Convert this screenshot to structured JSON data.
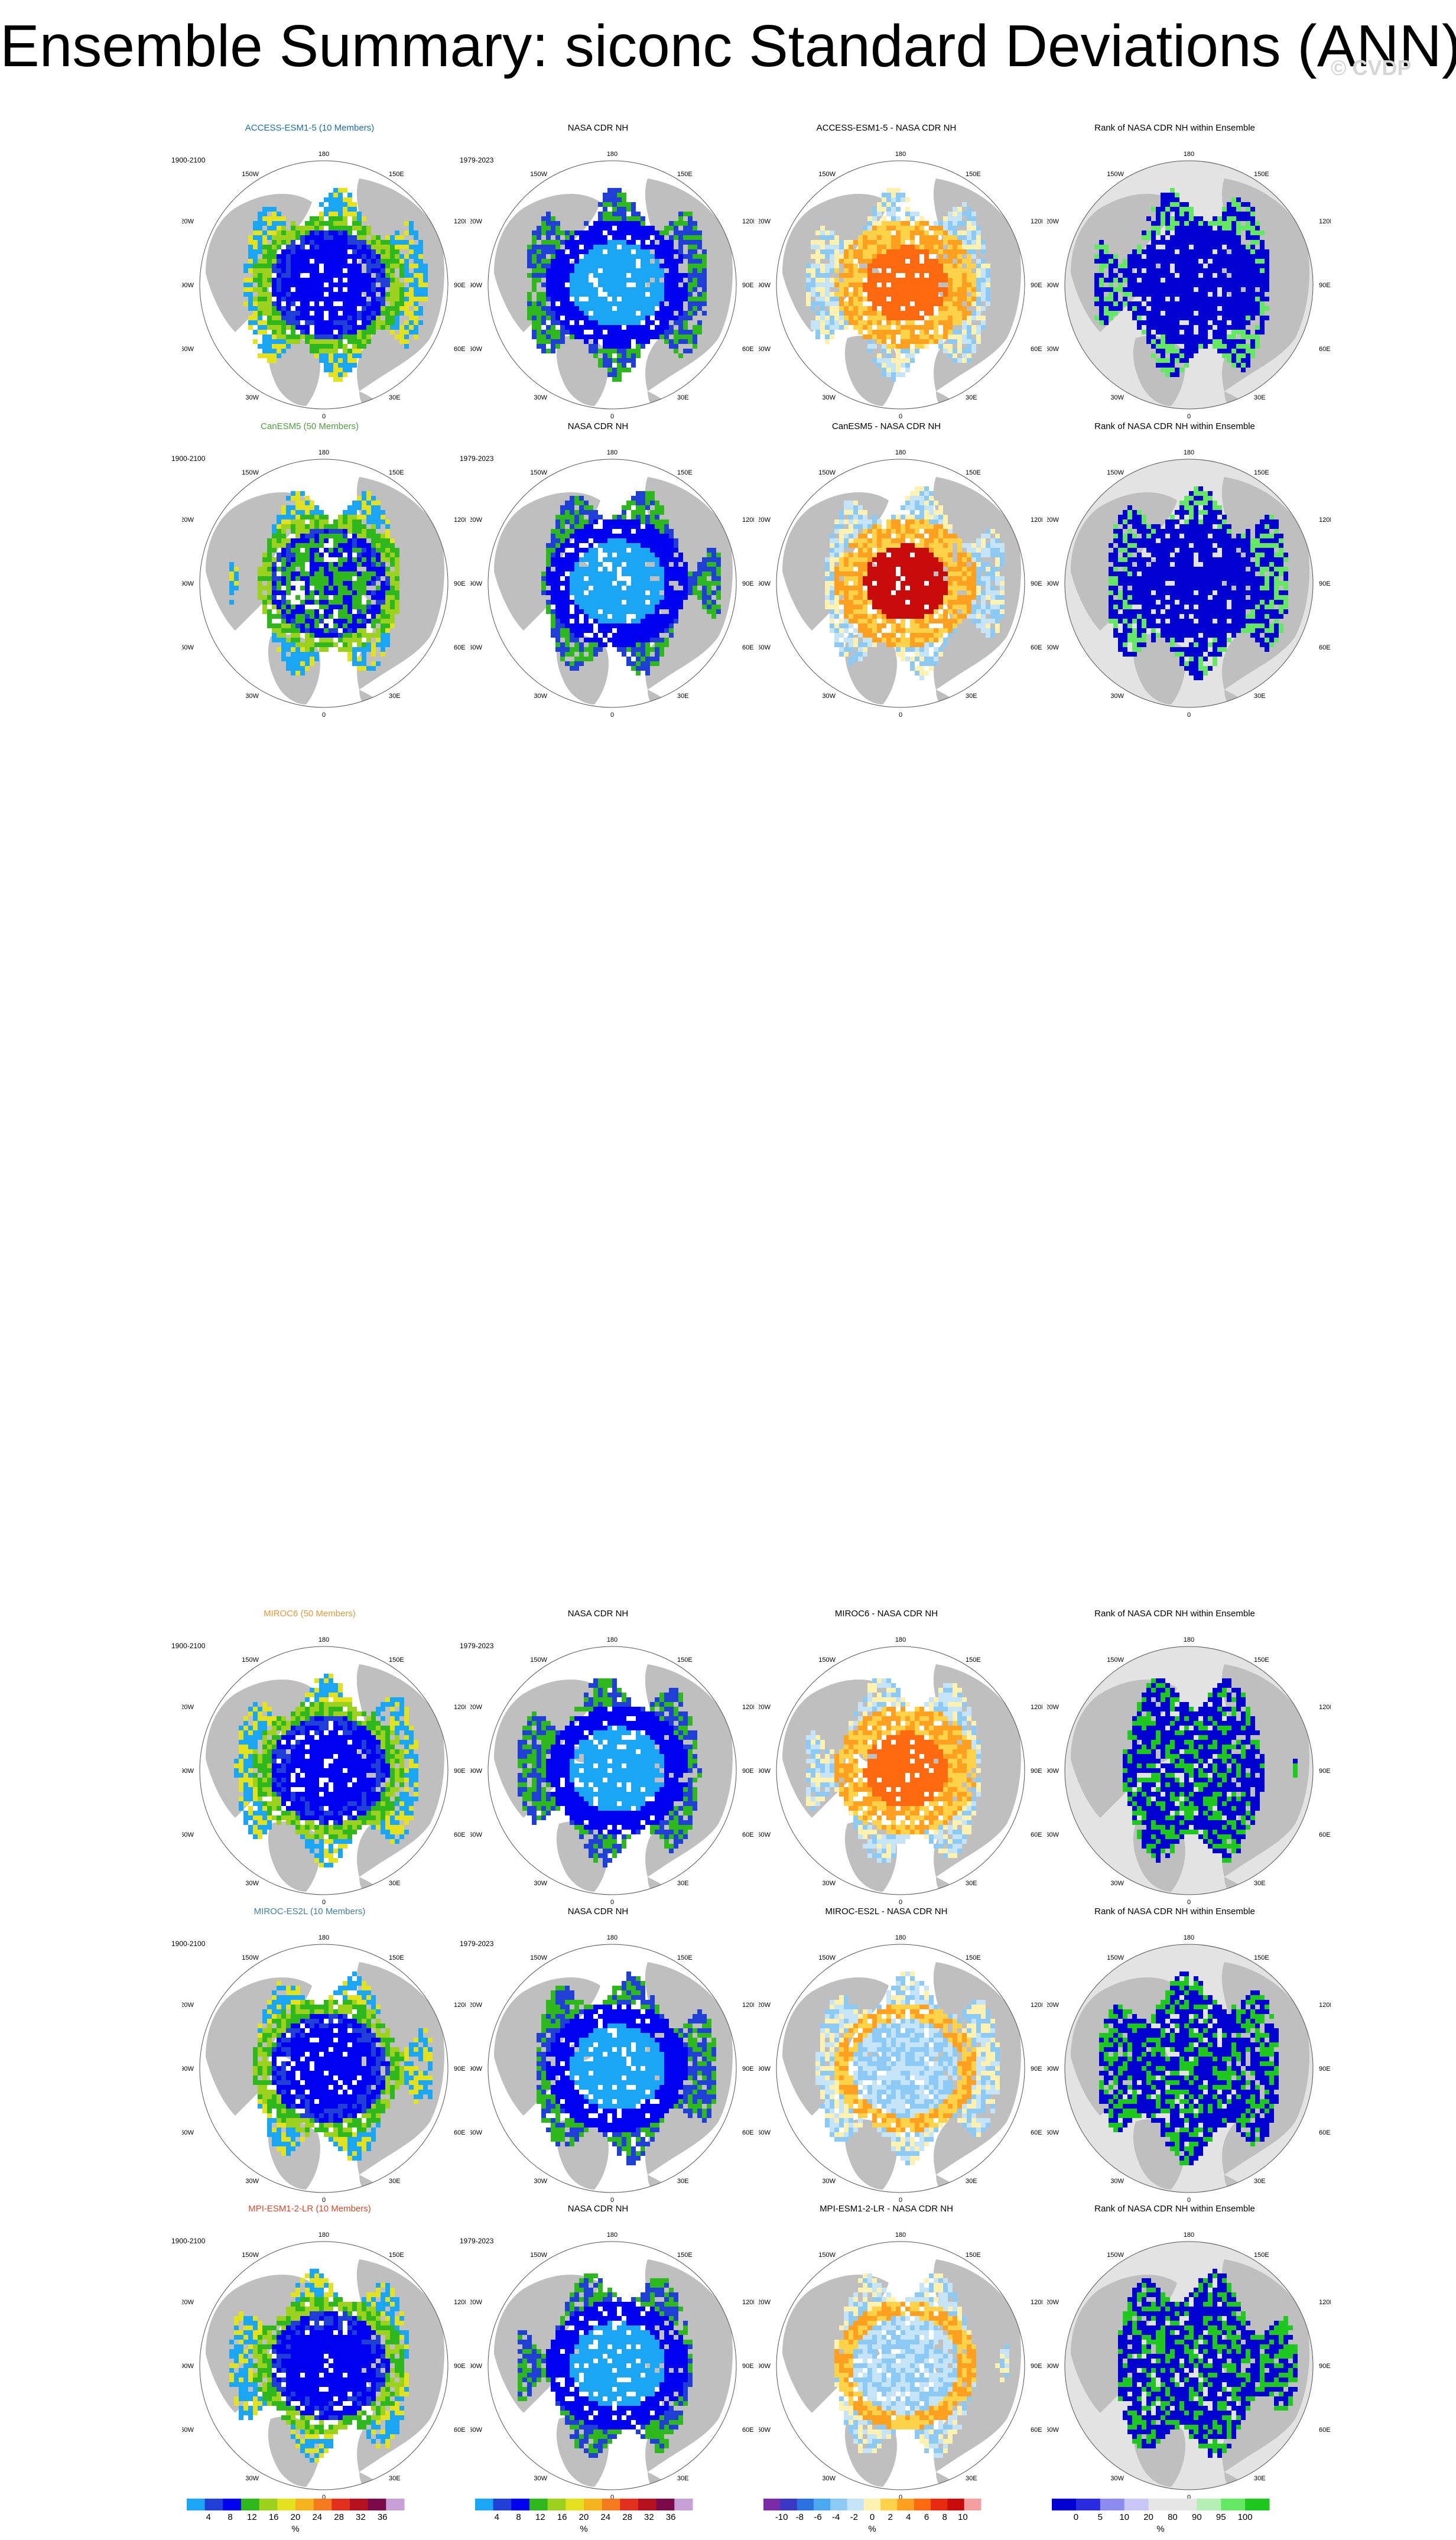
{
  "page": {
    "title": "Ensemble Summary: siconc Standard Deviations (ANN)",
    "watermark": "© CVDP"
  },
  "lon_labels": {
    "top": "180",
    "bottom": "0",
    "upper_left": "150W",
    "upper_right": "150E",
    "left_upper": "120W",
    "right_upper": "120E",
    "left_mid": "90W",
    "right_mid": "90E",
    "left_lower": "60W",
    "right_lower": "60E",
    "lower_left": "30W",
    "lower_right": "30E"
  },
  "colors": {
    "land": "#bfbfbf",
    "ocean": "#ffffff",
    "rank_background": "#e3e3e3",
    "sd_palette": [
      "#1aa5f5",
      "#1f3fd6",
      "#0000f0",
      "#2fb81e",
      "#9cd21e",
      "#e4e21e",
      "#f5b31e",
      "#f57a1e",
      "#e3301e",
      "#b4101e",
      "#7a0a4a",
      "#c8a0d8"
    ],
    "diff_palette": [
      "#7a2ca8",
      "#3a38c4",
      "#2a70e0",
      "#4aa8f0",
      "#8ccaf5",
      "#c6e4f8",
      "#fff2b0",
      "#ffd24a",
      "#ffa020",
      "#ff6a10",
      "#e82a10",
      "#c80a0a",
      "#f5a0a0"
    ],
    "rank_palette": [
      "#0000d0",
      "#2a2ae0",
      "#8c8cf0",
      "#c8c8f8",
      "#e6e6e6",
      "#e6e6e6",
      "#b4f0b4",
      "#64e864",
      "#1ec81e"
    ]
  },
  "rows": [
    {
      "model": "ACCESS-ESM1-5 (10 Members)",
      "model_color": "#1a6fa6",
      "period": "1900-2100",
      "obs_title": "NASA CDR NH",
      "obs_period": "1979-2023",
      "diff_title": "ACCESS-ESM1-5 - NASA CDR NH",
      "rank_title": "Rank of NASA CDR NH within Ensemble"
    },
    {
      "model": "CanESM5 (50 Members)",
      "model_color": "#4f9e3f",
      "period": "1900-2100",
      "obs_title": "NASA CDR NH",
      "obs_period": "1979-2023",
      "diff_title": "CanESM5 - NASA CDR NH",
      "rank_title": "Rank of NASA CDR NH within Ensemble"
    },
    {
      "model": "MIROC6 (50 Members)",
      "model_color": "#e39a3a",
      "period": "1900-2100",
      "obs_title": "NASA CDR NH",
      "obs_period": "1979-2023",
      "diff_title": "MIROC6 - NASA CDR NH",
      "rank_title": "Rank of NASA CDR NH within Ensemble"
    },
    {
      "model": "MIROC-ES2L (10 Members)",
      "model_color": "#3f7fa6",
      "period": "1900-2100",
      "obs_title": "NASA CDR NH",
      "obs_period": "1979-2023",
      "diff_title": "MIROC-ES2L - NASA CDR NH",
      "rank_title": "Rank of NASA CDR NH within Ensemble"
    },
    {
      "model": "MPI-ESM1-2-LR (10 Members)",
      "model_color": "#d9482b",
      "period": "1900-2100",
      "obs_title": "NASA CDR NH",
      "obs_period": "1979-2023",
      "diff_title": "MPI-ESM1-2-LR - NASA CDR NH",
      "rank_title": "Rank of NASA CDR NH within Ensemble"
    }
  ],
  "colorbars": {
    "sd": {
      "unit": "%",
      "ticks": [
        "4",
        "8",
        "12",
        "16",
        "20",
        "24",
        "28",
        "32",
        "36"
      ]
    },
    "diff": {
      "unit": "%",
      "ticks": [
        "-10",
        "-8",
        "-6",
        "-4",
        "-2",
        "0",
        "2",
        "4",
        "6",
        "8",
        "10"
      ]
    },
    "rank": {
      "unit": "%",
      "ticks": [
        "0",
        "5",
        "10",
        "20",
        "80",
        "90",
        "95",
        "100"
      ]
    }
  }
}
